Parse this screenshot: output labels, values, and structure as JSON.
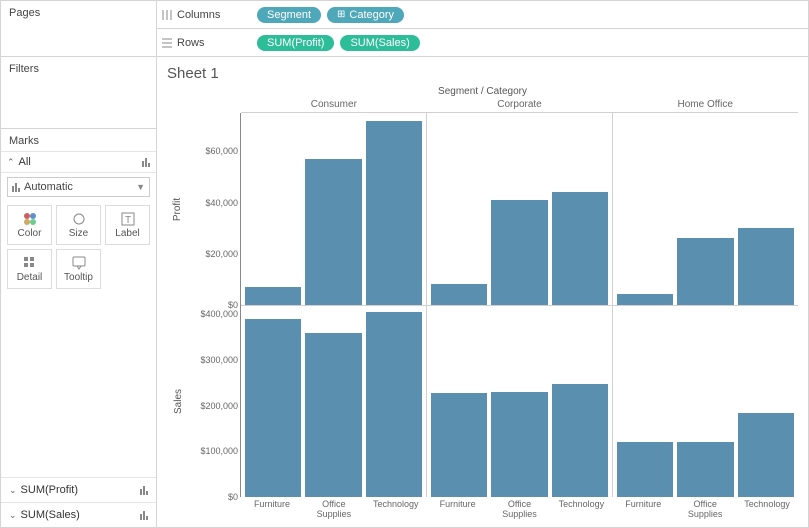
{
  "panels": {
    "pages": "Pages",
    "filters": "Filters",
    "marks": "Marks",
    "all": "All",
    "markType": "Automatic",
    "cards": {
      "color": "Color",
      "size": "Size",
      "label": "Label",
      "detail": "Detail",
      "tooltip": "Tooltip"
    },
    "measures": [
      "SUM(Profit)",
      "SUM(Sales)"
    ]
  },
  "shelves": {
    "columnsLabel": "Columns",
    "rowsLabel": "Rows",
    "columns": [
      {
        "label": "Segment",
        "type": "dim",
        "expand": false
      },
      {
        "label": "Category",
        "type": "dim",
        "expand": true
      }
    ],
    "rows": [
      {
        "label": "SUM(Profit)",
        "type": "meas"
      },
      {
        "label": "SUM(Sales)",
        "type": "meas"
      }
    ]
  },
  "viz": {
    "sheetTitle": "Sheet 1",
    "headerTop": "Segment / Category",
    "segments": [
      "Consumer",
      "Corporate",
      "Home Office"
    ],
    "categories": [
      "Furniture",
      "Office Supplies",
      "Technology"
    ],
    "categoryLabels": [
      "Furniture",
      "Office\nSupplies",
      "Technology"
    ],
    "barColor": "#5b8fb0",
    "rowsMeta": [
      {
        "name": "Profit",
        "max": 75000,
        "ticks": [
          0,
          20000,
          40000,
          60000
        ],
        "tickLabels": [
          "$0",
          "$20,000",
          "$40,000",
          "$60,000"
        ]
      },
      {
        "name": "Sales",
        "max": 420000,
        "ticks": [
          0,
          100000,
          200000,
          300000,
          400000
        ],
        "tickLabels": [
          "$0",
          "$100,000",
          "$200,000",
          "$300,000",
          "$400,000"
        ]
      }
    ],
    "data": {
      "Profit": {
        "Consumer": [
          7000,
          57000,
          72000
        ],
        "Corporate": [
          8000,
          41000,
          44000
        ],
        "Home Office": [
          4000,
          26000,
          30000
        ]
      },
      "Sales": {
        "Consumer": [
          390000,
          360000,
          405000
        ],
        "Corporate": [
          228000,
          230000,
          248000
        ],
        "Home Office": [
          120000,
          122000,
          185000
        ]
      }
    }
  }
}
